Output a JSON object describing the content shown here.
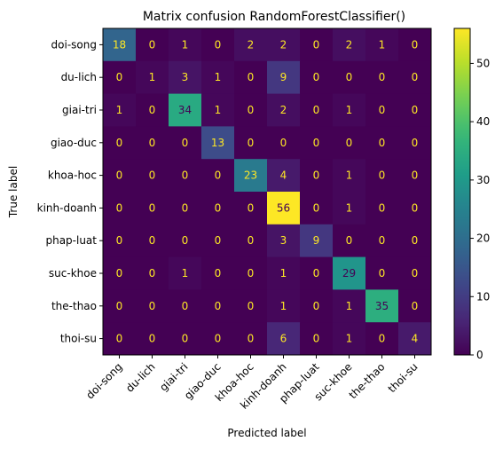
{
  "chart_data": {
    "type": "heatmap",
    "title": "Matrix confusion RandomForestClassifier()",
    "xlabel": "Predicted label",
    "ylabel": "True label",
    "x_categories": [
      "doi-song",
      "du-lich",
      "giai-tri",
      "giao-duc",
      "khoa-hoc",
      "kinh-doanh",
      "phap-luat",
      "suc-khoe",
      "the-thao",
      "thoi-su"
    ],
    "y_categories": [
      "doi-song",
      "du-lich",
      "giai-tri",
      "giao-duc",
      "khoa-hoc",
      "kinh-doanh",
      "phap-luat",
      "suc-khoe",
      "the-thao",
      "thoi-su"
    ],
    "matrix": [
      [
        18,
        0,
        1,
        0,
        2,
        2,
        0,
        2,
        1,
        0
      ],
      [
        0,
        1,
        3,
        1,
        0,
        9,
        0,
        0,
        0,
        0
      ],
      [
        1,
        0,
        34,
        1,
        0,
        2,
        0,
        1,
        0,
        0
      ],
      [
        0,
        0,
        0,
        13,
        0,
        0,
        0,
        0,
        0,
        0
      ],
      [
        0,
        0,
        0,
        0,
        23,
        4,
        0,
        1,
        0,
        0
      ],
      [
        0,
        0,
        0,
        0,
        0,
        56,
        0,
        1,
        0,
        0
      ],
      [
        0,
        0,
        0,
        0,
        0,
        3,
        9,
        0,
        0,
        0
      ],
      [
        0,
        0,
        1,
        0,
        0,
        1,
        0,
        29,
        0,
        0
      ],
      [
        0,
        0,
        0,
        0,
        0,
        1,
        0,
        1,
        35,
        0
      ],
      [
        0,
        0,
        0,
        0,
        0,
        6,
        0,
        1,
        0,
        4
      ]
    ],
    "colormap": "viridis",
    "vmin": 0,
    "vmax": 56,
    "colorbar_ticks": [
      0,
      10,
      20,
      30,
      40,
      50
    ],
    "text_color_low": "#fde725",
    "text_color_high": "#440154"
  }
}
